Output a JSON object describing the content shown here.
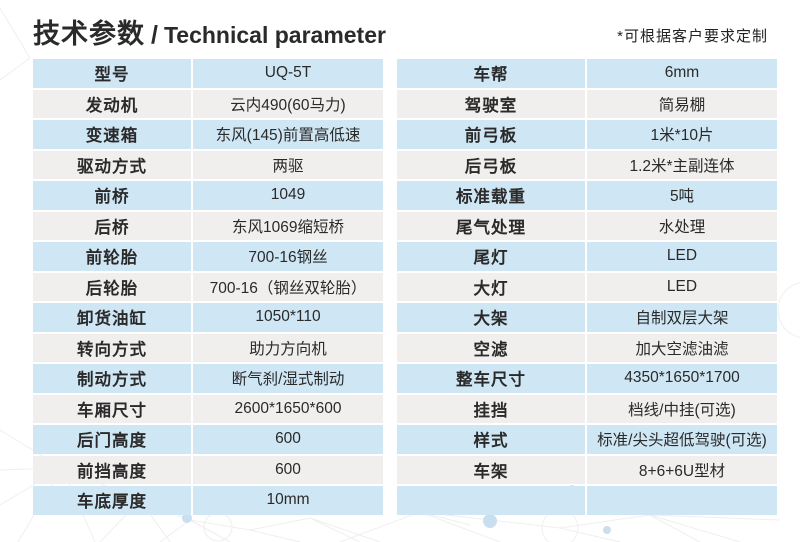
{
  "header": {
    "title_zh": "技术参数",
    "title_sep": "/",
    "title_en": "Technical parameter",
    "note": "*可根据客户要求定制"
  },
  "left_table": {
    "rows": [
      {
        "label": "型号",
        "value": "UQ-5T"
      },
      {
        "label": "发动机",
        "value": "云内490(60马力)"
      },
      {
        "label": "变速箱",
        "value": "东风(145)前置高低速"
      },
      {
        "label": "驱动方式",
        "value": "两驱"
      },
      {
        "label": "前桥",
        "value": "1049"
      },
      {
        "label": "后桥",
        "value": "东风1069缩短桥"
      },
      {
        "label": "前轮胎",
        "value": "700-16钢丝"
      },
      {
        "label": "后轮胎",
        "value": "700-16（钢丝双轮胎）"
      },
      {
        "label": "卸货油缸",
        "value": "1050*110"
      },
      {
        "label": "转向方式",
        "value": "助力方向机"
      },
      {
        "label": "制动方式",
        "value": "断气刹/湿式制动"
      },
      {
        "label": "车厢尺寸",
        "value": "2600*1650*600"
      },
      {
        "label": "后门高度",
        "value": "600"
      },
      {
        "label": "前挡高度",
        "value": "600"
      },
      {
        "label": "车底厚度",
        "value": "10mm"
      }
    ]
  },
  "right_table": {
    "rows": [
      {
        "label": "车帮",
        "value": "6mm"
      },
      {
        "label": "驾驶室",
        "value": "简易棚"
      },
      {
        "label": "前弓板",
        "value": "1米*10片"
      },
      {
        "label": "后弓板",
        "value": "1.2米*主副连体"
      },
      {
        "label": "标准载重",
        "value": "5吨"
      },
      {
        "label": "尾气处理",
        "value": "水处理"
      },
      {
        "label": "尾灯",
        "value": "LED"
      },
      {
        "label": "大灯",
        "value": "LED"
      },
      {
        "label": "大架",
        "value": "自制双层大架"
      },
      {
        "label": "空滤",
        "value": "加大空滤油滤"
      },
      {
        "label": "整车尺寸",
        "value": "4350*1650*1700"
      },
      {
        "label": "挂挡",
        "value": "档线/中挂(可选)"
      },
      {
        "label": "样式",
        "value": "标准/尖头超低驾驶(可选)"
      },
      {
        "label": "车架",
        "value": "8+6+6U型材"
      },
      {
        "label": "",
        "value": ""
      }
    ]
  },
  "colors": {
    "row_odd": "#cfe6f4",
    "row_even": "#f0efee",
    "text": "#2a2a2a",
    "watermark_line": "#ececec",
    "watermark_dot": "#c9dff0"
  }
}
